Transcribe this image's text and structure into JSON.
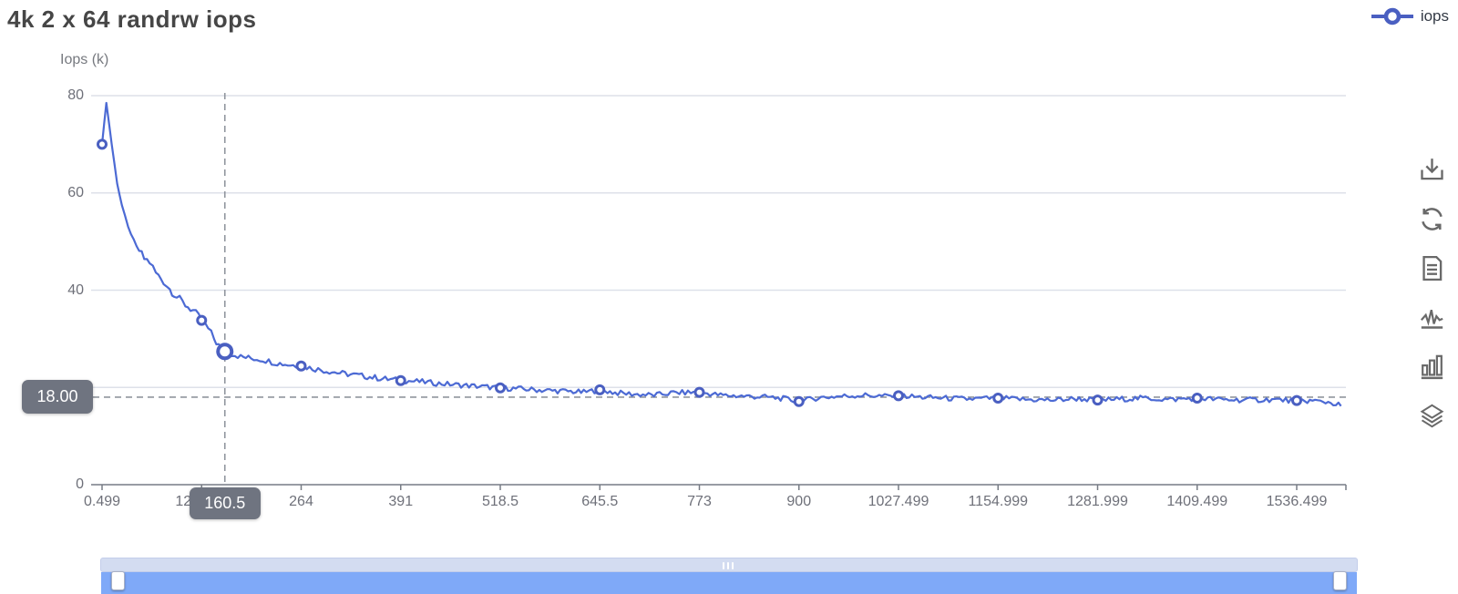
{
  "title": "4k 2 x 64 randrw iops",
  "legend": {
    "label": "iops"
  },
  "colors": {
    "line": "#4c6ad4",
    "marker": "#4a5fc1",
    "grid": "#dee1e9",
    "axis": "#777c85",
    "crosshair": "#90959d",
    "text": "#6e7079"
  },
  "toolbox": {
    "buttons": [
      {
        "name": "save-image"
      },
      {
        "name": "restore"
      },
      {
        "name": "data-view"
      },
      {
        "name": "switch-to-line"
      },
      {
        "name": "switch-to-bar"
      },
      {
        "name": "stack"
      }
    ]
  },
  "chart_data": {
    "type": "line",
    "series_name": "iops",
    "title": "4k 2 x 64 randrw iops",
    "ylabel": "Iops (k)",
    "ylim": [
      0,
      80
    ],
    "y_ticks": [
      0,
      20,
      40,
      60,
      80
    ],
    "grid_on": true,
    "legend_position": "top-right",
    "x_tick_labels": [
      "0.499",
      "128.999",
      "264",
      "391",
      "518.5",
      "645.5",
      "773",
      "900",
      "1027.499",
      "1154.999",
      "1281.999",
      "1409.499",
      "1536.499"
    ],
    "marker_values": [
      70.0,
      33.8,
      24.4,
      21.4,
      19.9,
      19.5,
      19.0,
      17.1,
      18.3,
      17.8,
      17.4,
      17.8,
      17.3
    ],
    "crosshair": {
      "x_label": "160.5",
      "x_value": 160.5,
      "y_label": "18.00",
      "y_value": 18.0,
      "point_value": 27.4
    },
    "points": [
      [
        0.499,
        70.0
      ],
      [
        6,
        78.5
      ],
      [
        13,
        70.0
      ],
      [
        20,
        62.0
      ],
      [
        26,
        57.5
      ],
      [
        34,
        53.0
      ],
      [
        45,
        49.0
      ],
      [
        55,
        46.5
      ],
      [
        62,
        45.8
      ],
      [
        70,
        43.5
      ],
      [
        80,
        41.8
      ],
      [
        88,
        40.2
      ],
      [
        97,
        38.6
      ],
      [
        108,
        37.0
      ],
      [
        118,
        35.8
      ],
      [
        128.999,
        33.8
      ],
      [
        138,
        32.0
      ],
      [
        146,
        30.0
      ],
      [
        152,
        28.6
      ],
      [
        160.5,
        27.4
      ],
      [
        170,
        26.9
      ],
      [
        182,
        26.3
      ],
      [
        196,
        26.0
      ],
      [
        212,
        25.7
      ],
      [
        228,
        25.1
      ],
      [
        246,
        24.7
      ],
      [
        264,
        24.4
      ],
      [
        282,
        23.8
      ],
      [
        300,
        23.3
      ],
      [
        320,
        22.8
      ],
      [
        345,
        22.3
      ],
      [
        368,
        21.8
      ],
      [
        391,
        21.4
      ],
      [
        415,
        21.2
      ],
      [
        440,
        20.8
      ],
      [
        465,
        20.5
      ],
      [
        492,
        20.2
      ],
      [
        518.5,
        19.9
      ],
      [
        545,
        19.7
      ],
      [
        575,
        19.4
      ],
      [
        605,
        19.2
      ],
      [
        625,
        19.0
      ],
      [
        645.5,
        19.5
      ],
      [
        665,
        18.9
      ],
      [
        690,
        18.6
      ],
      [
        715,
        18.4
      ],
      [
        740,
        18.9
      ],
      [
        773,
        19.0
      ],
      [
        800,
        18.4
      ],
      [
        830,
        18.2
      ],
      [
        860,
        18.0
      ],
      [
        880,
        17.7
      ],
      [
        900,
        17.1
      ],
      [
        925,
        17.9
      ],
      [
        955,
        18.2
      ],
      [
        985,
        18.4
      ],
      [
        1010,
        18.2
      ],
      [
        1027.499,
        18.3
      ],
      [
        1055,
        18.0
      ],
      [
        1085,
        17.8
      ],
      [
        1115,
        17.6
      ],
      [
        1154.999,
        17.8
      ],
      [
        1190,
        17.5
      ],
      [
        1225,
        17.4
      ],
      [
        1255,
        17.7
      ],
      [
        1281.999,
        17.4
      ],
      [
        1310,
        17.6
      ],
      [
        1340,
        17.8
      ],
      [
        1375,
        17.5
      ],
      [
        1409.499,
        17.8
      ],
      [
        1440,
        17.5
      ],
      [
        1470,
        17.4
      ],
      [
        1505,
        17.5
      ],
      [
        1536.499,
        17.3
      ],
      [
        1560,
        17.2
      ],
      [
        1580,
        16.9
      ],
      [
        1593,
        16.2
      ]
    ]
  }
}
